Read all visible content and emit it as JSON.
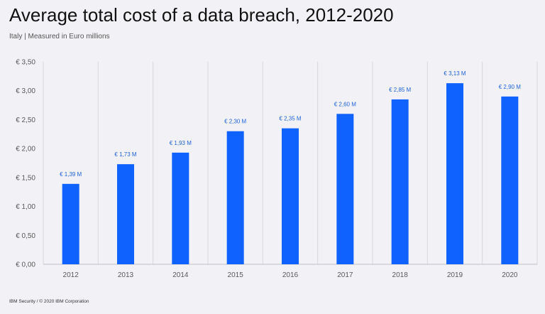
{
  "header": {
    "title": "Average total cost of a data breach, 2012-2020",
    "subtitle": "Italy | Measured in Euro millions"
  },
  "footer": {
    "text": "IBM Security / © 2020 IBM Corporation"
  },
  "chart_data": {
    "type": "bar",
    "categories": [
      "2012",
      "2013",
      "2014",
      "2015",
      "2016",
      "2017",
      "2018",
      "2019",
      "2020"
    ],
    "values": [
      1.39,
      1.73,
      1.93,
      2.3,
      2.35,
      2.6,
      2.85,
      3.13,
      2.9
    ],
    "data_labels": [
      "€ 1,39 M",
      "€ 1,73 M",
      "€ 1,93 M",
      "€ 2,30 M",
      "€ 2,35 M",
      "€ 2,60 M",
      "€ 2,85 M",
      "€ 3,13 M",
      "€ 2,90 M"
    ],
    "y_ticks": [
      0,
      0.5,
      1.0,
      1.5,
      2.0,
      2.5,
      3.0,
      3.5
    ],
    "y_tick_labels": [
      "€ 0,00",
      "€ 0,50",
      "€ 1,00",
      "€ 1,50",
      "€ 2,00",
      "€ 2,50",
      "€ 3,00",
      "€ 3,50"
    ],
    "ylim": [
      0,
      3.5
    ],
    "title": "Average total cost of a data breach, 2012-2020",
    "xlabel": "",
    "ylabel": "",
    "grid": "vertical category separators",
    "bar_color": "#0f62fe",
    "label_color": "#1f62d6"
  }
}
